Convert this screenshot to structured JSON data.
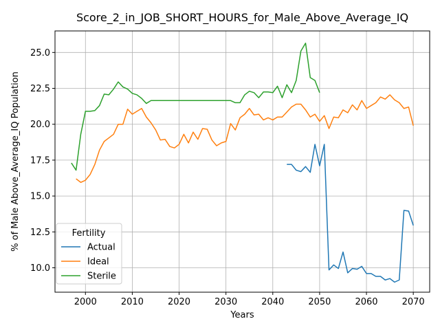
{
  "chart_data": {
    "type": "line",
    "title": "Score_2_in_JOB_SHORT_HOURS_for_Male_Above_Average_IQ",
    "xlabel": "Years",
    "ylabel": "% of Male Above_Average_IQ Population",
    "xlim": [
      1993.5,
      2073.5
    ],
    "ylim": [
      8.3,
      26.5
    ],
    "xticks": [
      2000,
      2010,
      2020,
      2030,
      2040,
      2050,
      2060,
      2070
    ],
    "yticks": [
      10.0,
      12.5,
      15.0,
      17.5,
      20.0,
      22.5,
      25.0
    ],
    "xtick_labels": [
      "2000",
      "2010",
      "2020",
      "2030",
      "2040",
      "2050",
      "2060",
      "2070"
    ],
    "ytick_labels": [
      "10.0",
      "12.5",
      "15.0",
      "17.5",
      "20.0",
      "22.5",
      "25.0"
    ],
    "grid": true,
    "legend": {
      "title": "Fertility",
      "position": "lower-left"
    },
    "series": [
      {
        "name": "Actual",
        "color": "#1f77b4",
        "x": [
          2043,
          2044,
          2045,
          2046,
          2047,
          2048,
          2049,
          2050,
          2051,
          2052,
          2053,
          2054,
          2055,
          2056,
          2057,
          2058,
          2059,
          2060,
          2061,
          2062,
          2063,
          2064,
          2065,
          2066,
          2067,
          2068,
          2069,
          2070
        ],
        "y": [
          17.2,
          17.2,
          16.8,
          16.7,
          17.05,
          16.65,
          18.6,
          17.1,
          18.6,
          9.85,
          10.2,
          9.95,
          11.1,
          9.65,
          9.95,
          9.9,
          10.1,
          9.6,
          9.6,
          9.4,
          9.4,
          9.15,
          9.25,
          9.0,
          9.15,
          14.0,
          13.95,
          12.95
        ]
      },
      {
        "name": "Ideal",
        "color": "#ff7f0e",
        "x": [
          1998,
          1999,
          2000,
          2001,
          2002,
          2003,
          2004,
          2005,
          2006,
          2007,
          2008,
          2009,
          2010,
          2011,
          2012,
          2013,
          2014,
          2015,
          2016,
          2017,
          2018,
          2019,
          2020,
          2021,
          2022,
          2023,
          2024,
          2025,
          2026,
          2027,
          2028,
          2029,
          2030,
          2031,
          2032,
          2033,
          2034,
          2035,
          2036,
          2037,
          2038,
          2039,
          2040,
          2041,
          2042,
          2043,
          2044,
          2045,
          2046,
          2047,
          2048,
          2049,
          2050,
          2051,
          2052,
          2053,
          2054,
          2055,
          2056,
          2057,
          2058,
          2059,
          2060,
          2061,
          2062,
          2063,
          2064,
          2065,
          2066,
          2067,
          2068,
          2069,
          2070
        ],
        "y": [
          16.2,
          15.95,
          16.1,
          16.5,
          17.2,
          18.2,
          18.8,
          19.05,
          19.3,
          20.0,
          20.0,
          21.05,
          20.7,
          20.9,
          21.1,
          20.5,
          20.1,
          19.6,
          18.9,
          18.95,
          18.45,
          18.35,
          18.6,
          19.3,
          18.7,
          19.45,
          18.95,
          19.7,
          19.65,
          18.9,
          18.5,
          18.7,
          18.8,
          20.05,
          19.6,
          20.45,
          20.7,
          21.1,
          20.65,
          20.7,
          20.3,
          20.45,
          20.3,
          20.5,
          20.5,
          20.85,
          21.2,
          21.4,
          21.4,
          21.0,
          20.5,
          20.7,
          20.2,
          20.6,
          19.7,
          20.5,
          20.45,
          21.0,
          20.8,
          21.35,
          21.0,
          21.65,
          21.1,
          21.3,
          21.5,
          21.9,
          21.75,
          22.05,
          21.7,
          21.5,
          21.1,
          21.2,
          19.9
        ]
      },
      {
        "name": "Sterile",
        "color": "#2ca02c",
        "x": [
          1997,
          1998,
          1999,
          2000,
          2001,
          2002,
          2003,
          2004,
          2005,
          2006,
          2007,
          2008,
          2009,
          2010,
          2011,
          2012,
          2013,
          2014,
          2015,
          2016,
          2017,
          2018,
          2019,
          2020,
          2021,
          2022,
          2023,
          2024,
          2025,
          2026,
          2027,
          2028,
          2029,
          2030,
          2031,
          2032,
          2033,
          2034,
          2035,
          2036,
          2037,
          2038,
          2039,
          2040,
          2041,
          2042,
          2043,
          2044,
          2045,
          2046,
          2047,
          2048,
          2049,
          2050
        ],
        "y": [
          17.3,
          16.8,
          19.3,
          20.9,
          20.9,
          20.95,
          21.3,
          22.1,
          22.05,
          22.45,
          22.95,
          22.6,
          22.45,
          22.15,
          22.05,
          21.8,
          21.45,
          21.65,
          21.65,
          21.65,
          21.65,
          21.65,
          21.65,
          21.65,
          21.65,
          21.65,
          21.65,
          21.65,
          21.65,
          21.65,
          21.65,
          21.65,
          21.65,
          21.65,
          21.65,
          21.5,
          21.5,
          22.05,
          22.3,
          22.2,
          21.85,
          22.25,
          22.25,
          22.2,
          22.65,
          21.85,
          22.75,
          22.2,
          23.05,
          25.1,
          25.65,
          23.25,
          23.05,
          22.2
        ]
      }
    ]
  }
}
